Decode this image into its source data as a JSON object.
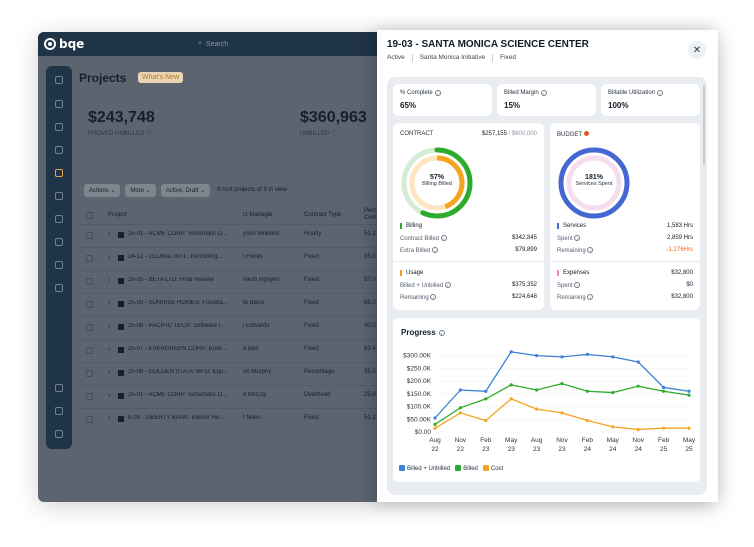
{
  "app": {
    "logo_text": "bqe",
    "search_placeholder": "Search"
  },
  "projects_page": {
    "title": "Projects",
    "whats_new": "What's New",
    "stats": [
      {
        "value": "$243,748",
        "label": "PROVED UNBILLED ⓘ"
      },
      {
        "value": "$360,963",
        "label": "UNBILLED ⓘ"
      }
    ],
    "toolbar": {
      "actions": "Actions",
      "more": "More",
      "filter": "Active, Draft",
      "count": "9 root projects of 9 in view"
    },
    "columns": {
      "project": "Project",
      "manager": "ct Manager",
      "contract_type": "Contract Type",
      "percent": "Perce Comp"
    },
    "rows": [
      {
        "name": "25-01 - ACME CORP: Schematic D...",
        "manager": "yson Williams",
        "type": "Hourly",
        "pct": "51.2"
      },
      {
        "name": "24-12 - GLOBAL INTL: Permitting...",
        "manager": "l Flores",
        "type": "Fixed",
        "pct": "65.0"
      },
      {
        "name": "28-05 - BETA LTD: Final Review",
        "manager": "inesh Nguyen",
        "type": "Fixed",
        "pct": "57.0"
      },
      {
        "name": "25-05 - SUNRISE HOMES: Founda...",
        "manager": "te Black",
        "type": "Fixed",
        "pct": "65.0"
      },
      {
        "name": "25-08 - PACIFIC TECH: Software I...",
        "manager": "i Edwards",
        "type": "Fixed",
        "pct": "40.0"
      },
      {
        "name": "25-07 - EVERGREEN CORP: Envir...",
        "manager": "e Bell",
        "type": "Fixed",
        "pct": "83.4"
      },
      {
        "name": "25-08 - GOLDEN STATE MFG: Equ...",
        "manager": "on Murphy",
        "type": "Percentage",
        "pct": "35.0"
      },
      {
        "name": "25-01 - ACME CORP: Schematic D...",
        "manager": "e McCoy",
        "type": "Overhead",
        "pct": "25.0"
      },
      {
        "name": "8-09 - LIBERTY BANK: Interior Re...",
        "manager": "t Miles",
        "type": "Fixed",
        "pct": "51.2"
      }
    ]
  },
  "panel": {
    "title": "19-03 - SANTA MONICA SCIENCE CENTER",
    "status": "Active",
    "initiative": "Santa Monica Initiative",
    "type": "Fixed",
    "kpis": [
      {
        "label": "% Complete",
        "value": "65%"
      },
      {
        "label": "Billed Margin",
        "value": "15%"
      },
      {
        "label": "Billable Utilization",
        "value": "100%"
      }
    ],
    "contract": {
      "title": "CONTRACT",
      "amount": "$257,155",
      "total": "/ $600,000",
      "donut_pct": "57%",
      "donut_label": "Billing Billed",
      "donut_fraction": 0.57,
      "billing_title": "Billing",
      "contract_billed_label": "Contract Billed",
      "contract_billed_value": "$342,845",
      "extra_billed_label": "Extra Billed",
      "extra_billed_value": "$79,899",
      "usage_title": "Usage",
      "billed_unbilled_label": "Billed + Unbilled",
      "billed_unbilled_value": "$375,352",
      "remaining_label": "Remaining",
      "remaining_value": "$224,648"
    },
    "budget": {
      "title": "BUDGET",
      "donut_pct": "181%",
      "donut_label": "Services Spent",
      "services_title": "Services",
      "services_value": "1,583 Hrs",
      "spent_label": "Spent",
      "spent_value": "2,859 Hrs",
      "remaining_label": "Remaining",
      "remaining_value": "-1,276Hrs",
      "expenses_title": "Expenses",
      "expenses_value": "$32,800",
      "exp_spent_label": "Spent",
      "exp_spent_value": "$0",
      "exp_remaining_label": "Remaining",
      "exp_remaining_value": "$32,800"
    },
    "progress_title": "Progress"
  },
  "chart_data": {
    "type": "line",
    "title": "Progress",
    "categories": [
      "Aug 22",
      "Nov 22",
      "Feb 23",
      "May 23",
      "Aug 23",
      "Nov 23",
      "Feb 24",
      "May 24",
      "Nov 24",
      "Feb 25",
      "May 25"
    ],
    "ylim": [
      0,
      330000
    ],
    "y_ticks": [
      "$300.00K",
      "$250.0K",
      "$200.0K",
      "$150.0K",
      "$100.0K",
      "$50.00K",
      "$0.00"
    ],
    "y_tick_values": [
      300000,
      250000,
      200000,
      150000,
      100000,
      50000,
      0
    ],
    "series": [
      {
        "name": "Billed + Unbilled",
        "color": "#3e82d6",
        "values": [
          55000,
          165000,
          160000,
          315000,
          300000,
          295000,
          305000,
          295000,
          275000,
          175000,
          160000
        ]
      },
      {
        "name": "Billed",
        "color": "#2dab2a",
        "values": [
          30000,
          95000,
          130000,
          185000,
          165000,
          190000,
          160000,
          155000,
          180000,
          160000,
          145000
        ]
      },
      {
        "name": "Cost",
        "color": "#f5a420",
        "values": [
          15000,
          75000,
          45000,
          130000,
          90000,
          75000,
          45000,
          20000,
          10000,
          15000,
          15000
        ]
      }
    ],
    "legend": "bottom-left"
  }
}
